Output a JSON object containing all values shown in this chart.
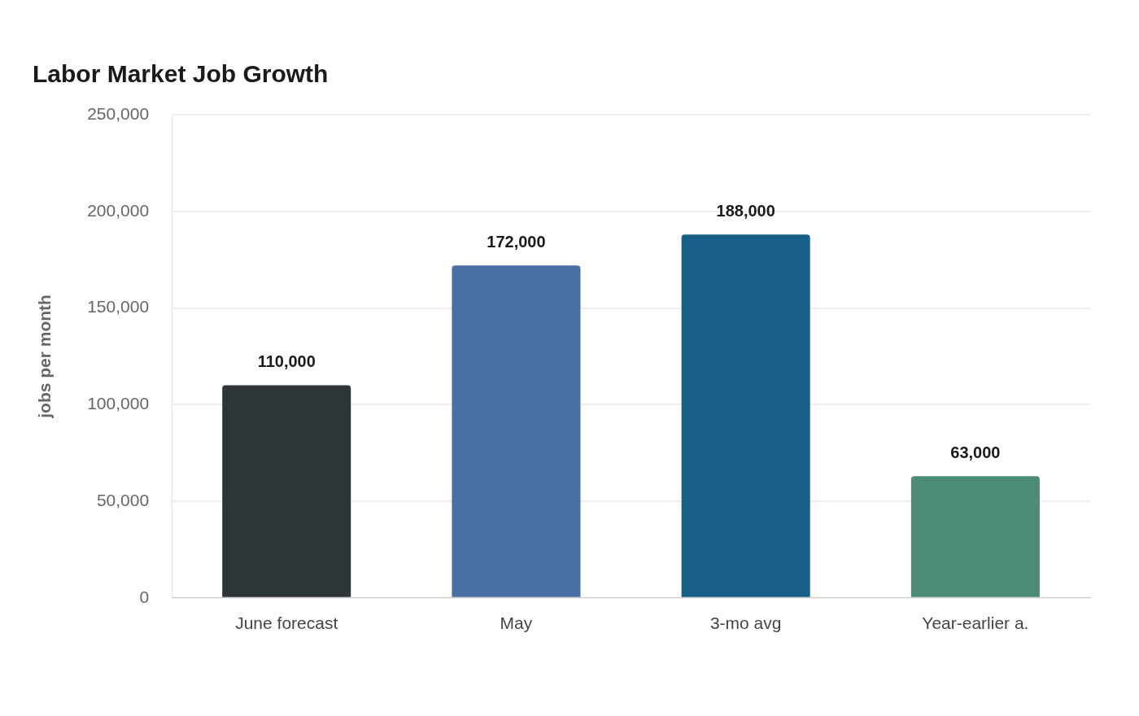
{
  "chart_data": {
    "type": "bar",
    "title": "Labor Market Job Growth",
    "ylabel": "jobs per month",
    "categories": [
      "June forecast",
      "May",
      "3-mo avg",
      "Year-earlier a."
    ],
    "values": [
      110000,
      172000,
      188000,
      63000
    ],
    "colors": [
      "#2e3538",
      "#4a6fa3",
      "#185f88",
      "#4e8c7a"
    ],
    "value_labels": [
      "110,000",
      "172,000",
      "188,000",
      "63,000"
    ],
    "ylim": [
      0,
      250000
    ],
    "yticks": [
      {
        "value": 0,
        "label": "0"
      },
      {
        "value": 50000,
        "label": "50,000"
      },
      {
        "value": 100000,
        "label": "100,000"
      },
      {
        "value": 150000,
        "label": "150,000"
      },
      {
        "value": 200000,
        "label": "200,000"
      },
      {
        "value": 250000,
        "label": "250,000"
      }
    ],
    "grid": "y",
    "legend": false
  }
}
